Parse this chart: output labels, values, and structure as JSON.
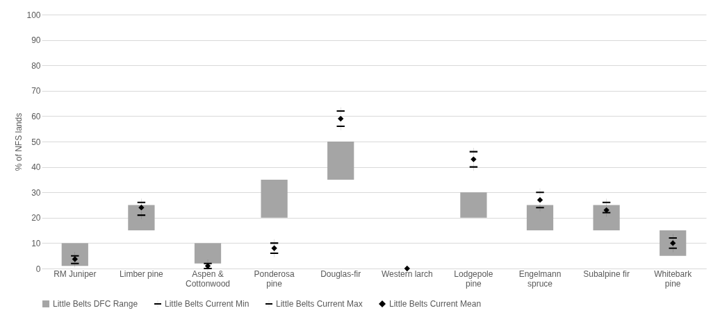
{
  "chart_data": {
    "type": "bar",
    "ylabel": "% of NFS lands",
    "categories": [
      "RM Juniper",
      "Limber pine",
      "Aspen & Cottonwood",
      "Ponderosa pine",
      "Douglas-fir",
      "Western larch",
      "Lodgepole pine",
      "Engelmann spruce",
      "Subalpine fir",
      "Whitebark pine"
    ],
    "ylim": [
      0,
      100
    ],
    "yticks": [
      0,
      10,
      20,
      30,
      40,
      50,
      60,
      70,
      80,
      90,
      100
    ],
    "grid": "y",
    "legend": "bottom",
    "series": [
      {
        "name": "Little Belts DFC Range",
        "color": "#a5a5a5",
        "base": [
          1,
          15,
          2,
          20,
          35,
          null,
          20,
          15,
          15,
          5
        ],
        "values": [
          9,
          10,
          8,
          15,
          15,
          null,
          10,
          10,
          10,
          10
        ]
      },
      {
        "name": "Little Belts Current Min",
        "type": "scatter",
        "color": "#000000",
        "values": [
          2,
          21,
          0,
          6,
          56,
          null,
          40,
          24,
          22,
          8
        ]
      },
      {
        "name": "Little Belts Current Max",
        "type": "scatter",
        "color": "#000000",
        "values": [
          5,
          26,
          2,
          10,
          62,
          null,
          46,
          30,
          26,
          12
        ]
      },
      {
        "name": "Little Belts Current Mean",
        "type": "scatter",
        "marker": "diamond",
        "color": "#000000",
        "values": [
          3.7,
          24,
          1,
          8,
          59,
          0,
          43,
          27,
          23,
          10
        ]
      }
    ]
  }
}
